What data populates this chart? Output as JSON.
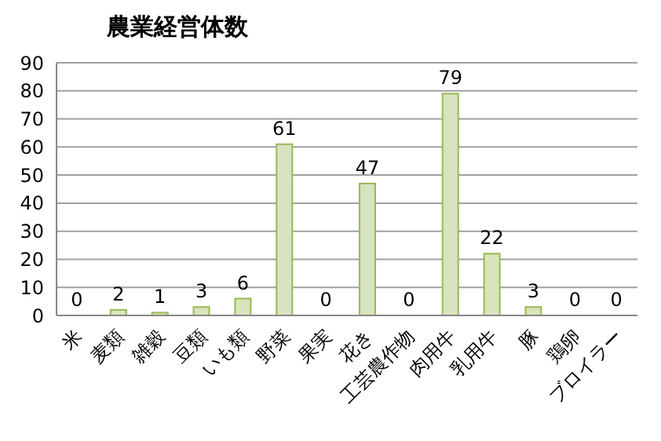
{
  "chart_data": {
    "type": "bar",
    "title": "農業経営体数",
    "categories": [
      "米",
      "麦類",
      "雑穀",
      "豆類",
      "いも類",
      "野菜",
      "果実",
      "花き",
      "工芸農作物",
      "肉用牛",
      "乳用牛",
      "豚",
      "鶏卵",
      "ブロイラー"
    ],
    "values": [
      0,
      2,
      1,
      3,
      6,
      61,
      0,
      47,
      0,
      79,
      22,
      3,
      0,
      0
    ],
    "color": "#d7e4bd",
    "ylim": [
      0,
      90
    ],
    "yticks": [
      0,
      10,
      20,
      30,
      40,
      50,
      60,
      70,
      80,
      90
    ],
    "grid": "y",
    "data_labels": true
  }
}
